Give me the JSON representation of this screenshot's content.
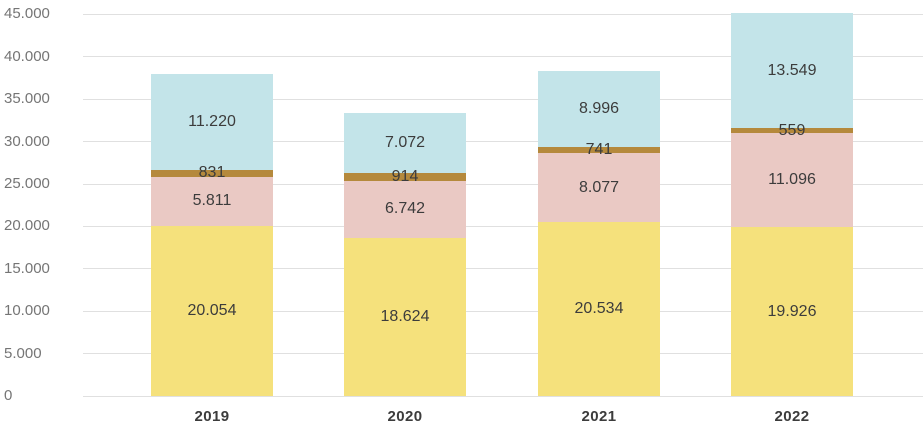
{
  "chart_data": {
    "type": "bar",
    "stacked": true,
    "title": "",
    "categories": [
      "2019",
      "2020",
      "2021",
      "2022"
    ],
    "series": [
      {
        "name": "yellow-segment",
        "color": "#f5e17c",
        "values": [
          20054,
          18624,
          20534,
          19926
        ],
        "labels": [
          "20.054",
          "18.624",
          "20.534",
          "19.926"
        ]
      },
      {
        "name": "pink-segment",
        "color": "#eac9c4",
        "values": [
          5811,
          6742,
          8077,
          11096
        ],
        "labels": [
          "5.811",
          "6.742",
          "8.077",
          "11.096"
        ]
      },
      {
        "name": "brown-segment",
        "color": "#b5893c",
        "values": [
          831,
          914,
          741,
          559
        ],
        "labels": [
          "831",
          "914",
          "741",
          "559"
        ]
      },
      {
        "name": "blue-segment",
        "color": "#c3e4e9",
        "values": [
          11220,
          7072,
          8996,
          13549
        ],
        "labels": [
          "11.220",
          "7.072",
          "8.996",
          "13.549"
        ]
      }
    ],
    "y_axis": {
      "min": 0,
      "max": 45000,
      "step": 5000,
      "tick_labels": [
        "0",
        "5.000",
        "10.000",
        "15.000",
        "20.000",
        "25.000",
        "30.000",
        "35.000",
        "40.000",
        "45.000"
      ]
    },
    "x_axis": {
      "tick_labels": [
        "2019",
        "2020",
        "2021",
        "2022"
      ]
    },
    "grid": true,
    "legend_position": "none",
    "colors": {
      "background": "#ffffff",
      "gridline": "#e0e0e0",
      "y_tick_text": "#757575",
      "segment_label_text": "#3c3c3c",
      "category_label_text": "#3c3c3c"
    }
  }
}
